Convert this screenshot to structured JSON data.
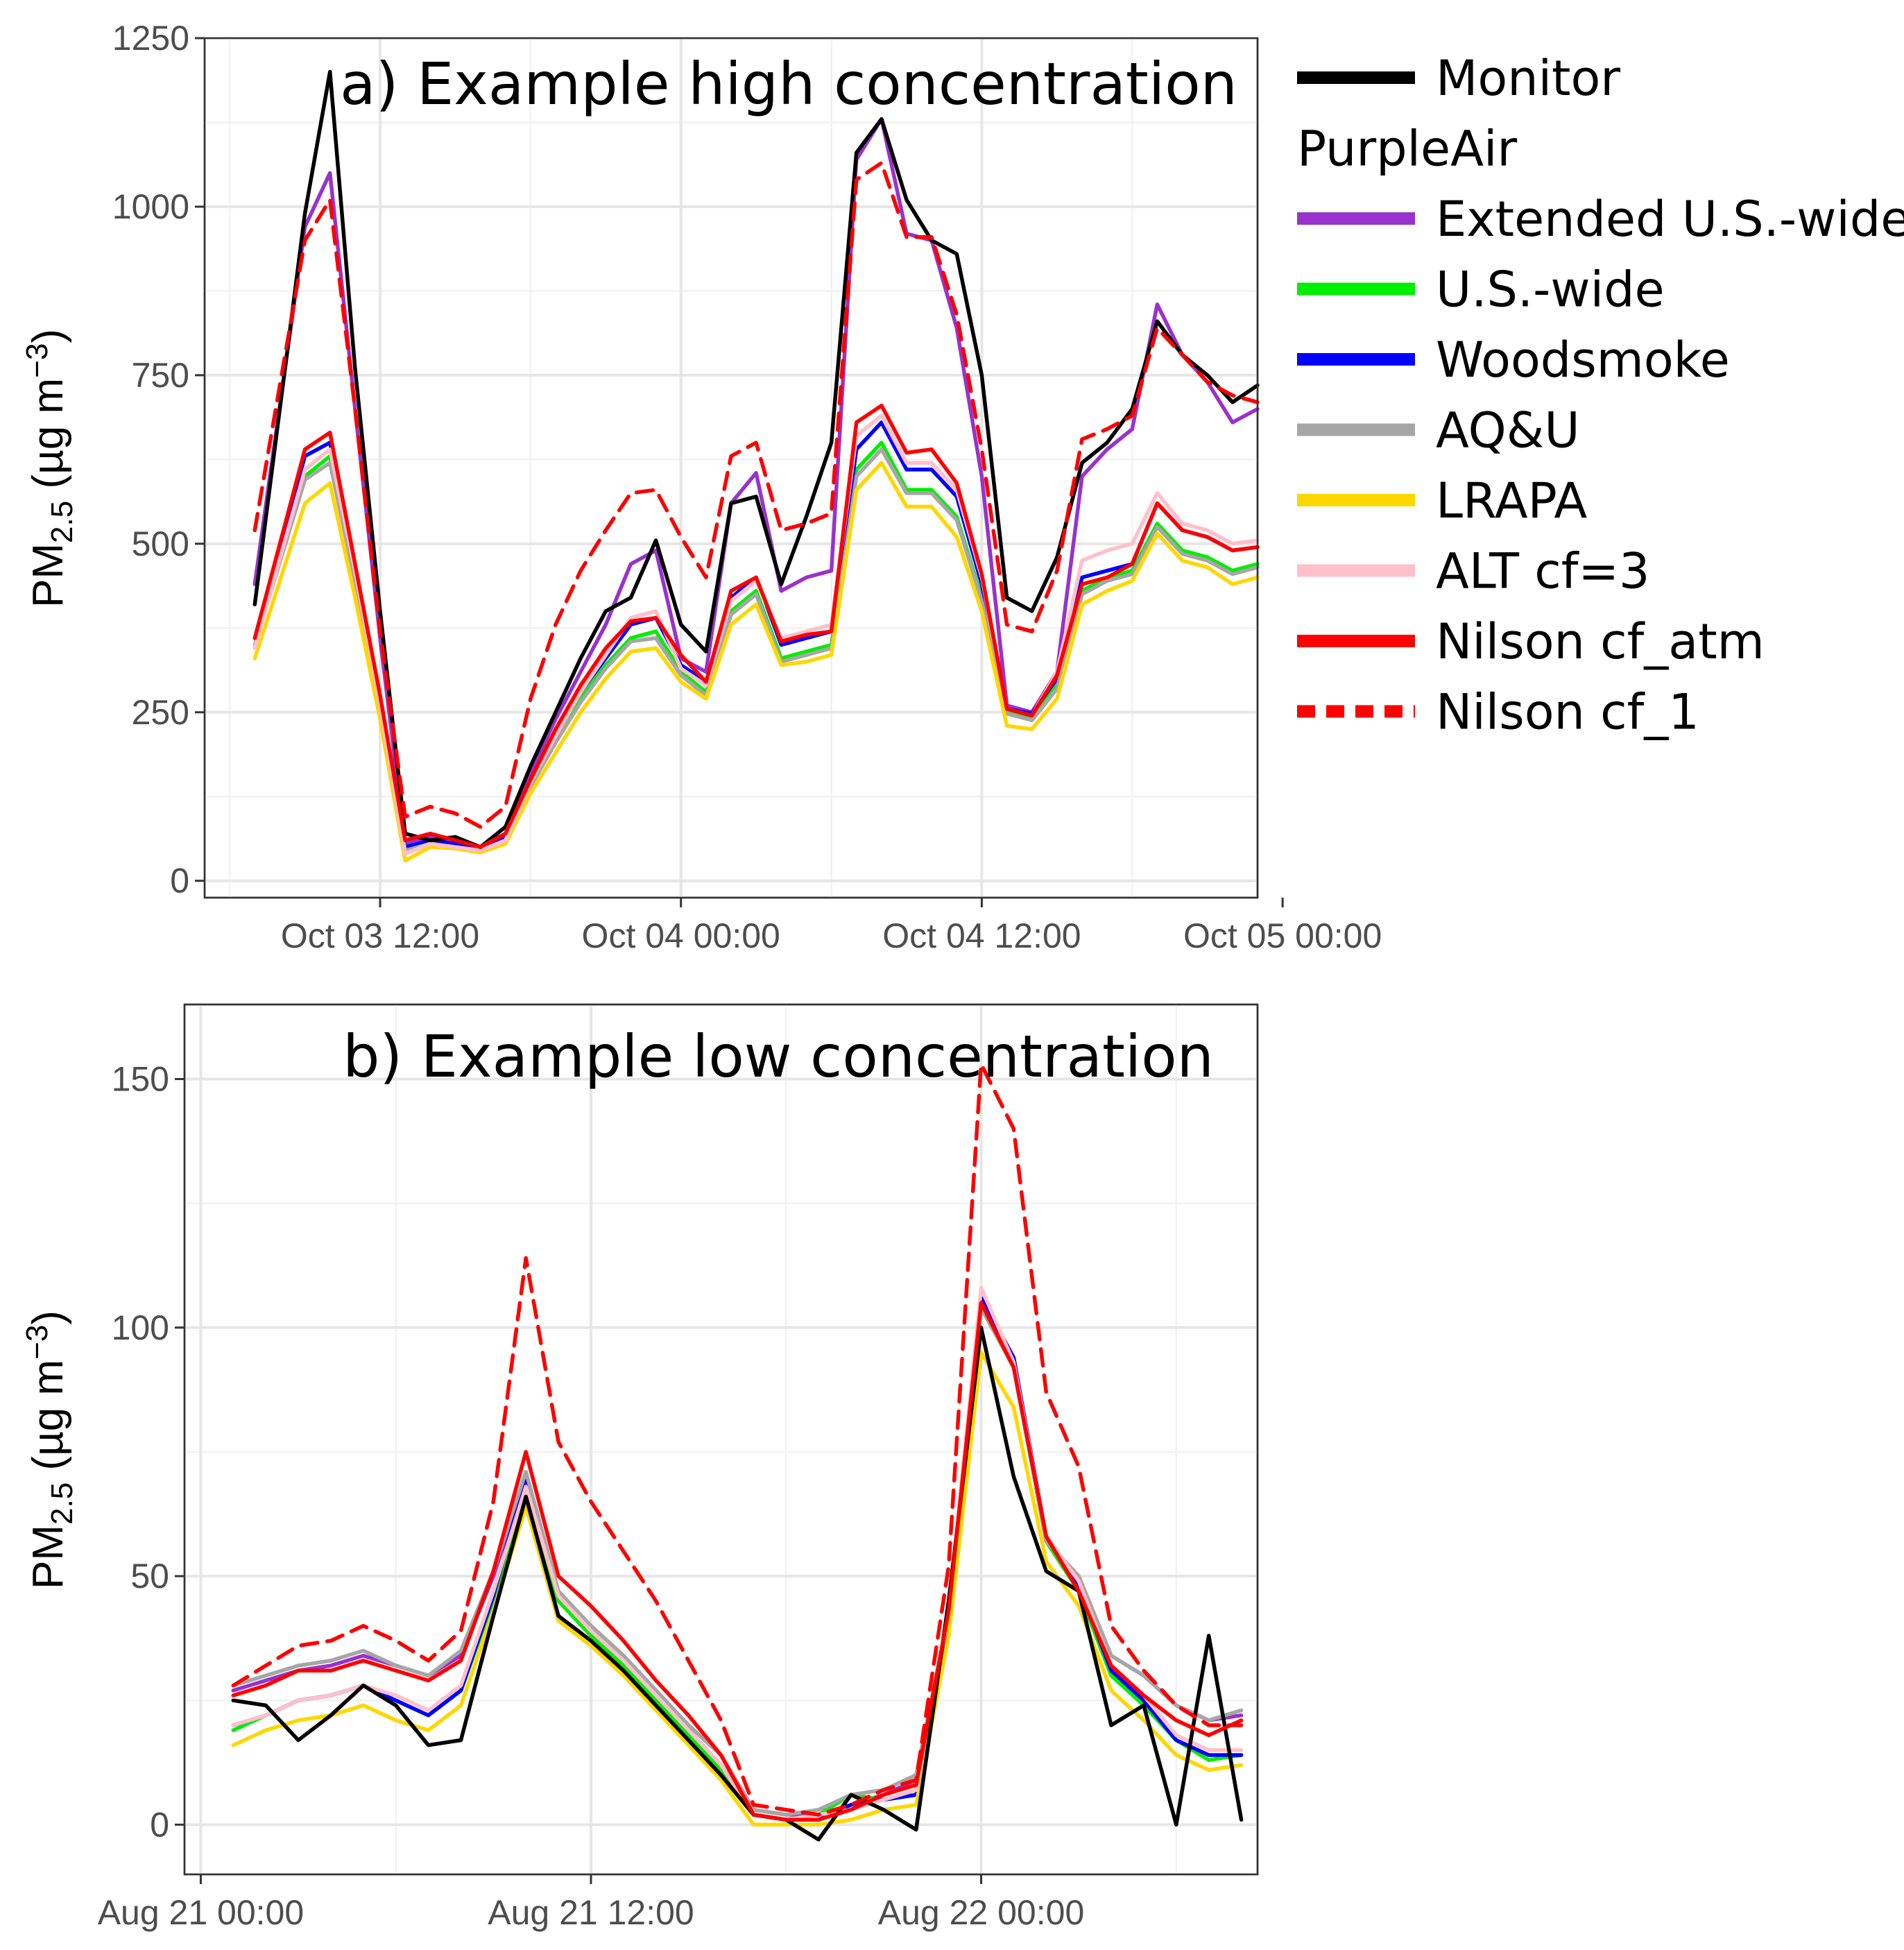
{
  "legend": {
    "items": [
      {
        "label": "Monitor",
        "color": "#000000",
        "dash": false
      },
      {
        "label": "PurpleAir",
        "header": true
      },
      {
        "label": "Extended U.S.-wide",
        "color": "#9932CC",
        "dash": false
      },
      {
        "label": "U.S.-wide",
        "color": "#00EE00",
        "dash": false
      },
      {
        "label": "Woodsmoke",
        "color": "#0000FF",
        "dash": false
      },
      {
        "label": "AQ&U",
        "color": "#A6A6A6",
        "dash": false
      },
      {
        "label": "LRAPA",
        "color": "#FFD700",
        "dash": false
      },
      {
        "label": "ALT cf=3",
        "color": "#FFC0CB",
        "dash": false
      },
      {
        "label": "Nilson cf_atm",
        "color": "#FF0000",
        "dash": false
      },
      {
        "label": "Nilson cf_1",
        "color": "#FF0000",
        "dash": true
      }
    ]
  },
  "chart_data": [
    {
      "type": "line",
      "title": "a) Example high concentration",
      "xlabel": "",
      "ylabel": "PM2.5 (µg m−3)",
      "ylabel_parts": {
        "main": "PM",
        "sub": "2.5",
        "unit": " (µg m",
        "sup": "−3",
        "close": ")"
      },
      "x_unit": "hours since Oct 03 00:00",
      "xlim": [
        5,
        47
      ],
      "ylim": [
        -25,
        1250
      ],
      "yticks": [
        0,
        250,
        500,
        750,
        1000,
        1250
      ],
      "xticks": [
        {
          "x": 12,
          "label": "Oct 03 12:00"
        },
        {
          "x": 24,
          "label": "Oct 04 00:00"
        },
        {
          "x": 36,
          "label": "Oct 04 12:00"
        },
        {
          "x": 48,
          "label": "Oct 05 00:00"
        }
      ],
      "x": [
        7,
        9,
        10,
        11,
        12,
        13,
        14,
        15,
        16,
        17,
        18,
        19,
        20,
        21,
        22,
        23,
        24,
        25,
        26,
        27,
        28,
        29,
        30,
        31,
        32,
        33,
        34,
        35,
        36,
        37,
        38,
        39,
        40,
        41,
        42,
        43,
        44,
        45,
        46,
        47
      ],
      "series": [
        {
          "name": "Monitor",
          "values": [
            410,
            990,
            1200,
            760,
            400,
            70,
            60,
            65,
            50,
            80,
            170,
            250,
            330,
            400,
            420,
            505,
            380,
            340,
            560,
            570,
            440,
            540,
            650,
            1080,
            1130,
            1010,
            950,
            930,
            750,
            420,
            400,
            480,
            620,
            650,
            700,
            830,
            780,
            750,
            710,
            735
          ]
        },
        {
          "name": "Extended U.S.-wide",
          "values": [
            440,
            970,
            1050,
            700,
            360,
            55,
            65,
            55,
            50,
            70,
            160,
            240,
            310,
            380,
            470,
            490,
            330,
            310,
            560,
            605,
            430,
            450,
            460,
            1070,
            1130,
            960,
            950,
            820,
            600,
            260,
            250,
            310,
            600,
            640,
            670,
            855,
            780,
            740,
            680,
            700
          ]
        },
        {
          "name": "U.S.-wide",
          "values": [
            350,
            600,
            630,
            450,
            260,
            45,
            55,
            50,
            45,
            60,
            140,
            210,
            270,
            320,
            360,
            370,
            310,
            280,
            400,
            430,
            330,
            340,
            350,
            610,
            650,
            580,
            580,
            540,
            420,
            250,
            240,
            290,
            430,
            450,
            460,
            530,
            490,
            480,
            460,
            470
          ]
        },
        {
          "name": "Woodsmoke",
          "values": [
            360,
            630,
            650,
            460,
            270,
            50,
            60,
            55,
            48,
            65,
            145,
            220,
            280,
            330,
            380,
            390,
            320,
            295,
            420,
            450,
            350,
            360,
            370,
            640,
            680,
            610,
            610,
            570,
            440,
            255,
            248,
            300,
            450,
            460,
            470,
            560,
            520,
            510,
            490,
            495
          ]
        },
        {
          "name": "AQ&U",
          "values": [
            350,
            595,
            620,
            445,
            255,
            45,
            55,
            50,
            45,
            60,
            140,
            205,
            265,
            315,
            355,
            360,
            305,
            275,
            395,
            425,
            325,
            335,
            345,
            600,
            640,
            575,
            575,
            535,
            415,
            248,
            238,
            285,
            425,
            445,
            455,
            525,
            485,
            475,
            455,
            465
          ]
        },
        {
          "name": "LRAPA",
          "values": [
            330,
            560,
            590,
            420,
            240,
            30,
            50,
            48,
            42,
            55,
            130,
            190,
            250,
            300,
            340,
            345,
            295,
            270,
            380,
            410,
            320,
            325,
            335,
            580,
            620,
            555,
            555,
            510,
            400,
            230,
            225,
            270,
            410,
            430,
            445,
            515,
            475,
            465,
            440,
            450
          ]
        },
        {
          "name": "ALT cf=3",
          "values": [
            345,
            610,
            640,
            460,
            260,
            40,
            55,
            50,
            45,
            60,
            145,
            215,
            280,
            335,
            390,
            400,
            315,
            290,
            415,
            445,
            360,
            370,
            380,
            660,
            690,
            620,
            620,
            580,
            450,
            255,
            245,
            310,
            475,
            490,
            500,
            575,
            530,
            520,
            500,
            505
          ]
        },
        {
          "name": "Nilson cf_atm",
          "values": [
            360,
            640,
            665,
            470,
            275,
            60,
            70,
            60,
            50,
            70,
            150,
            225,
            290,
            345,
            385,
            390,
            335,
            295,
            430,
            450,
            355,
            365,
            370,
            680,
            705,
            635,
            640,
            590,
            455,
            255,
            245,
            305,
            440,
            450,
            470,
            560,
            520,
            510,
            490,
            495
          ]
        },
        {
          "name": "Nilson cf_1",
          "values": [
            520,
            950,
            1010,
            700,
            370,
            95,
            110,
            100,
            80,
            110,
            270,
            380,
            460,
            520,
            575,
            580,
            510,
            450,
            630,
            650,
            520,
            530,
            545,
            1040,
            1065,
            955,
            955,
            840,
            640,
            380,
            370,
            460,
            655,
            670,
            690,
            820,
            780,
            740,
            720,
            710
          ]
        }
      ]
    },
    {
      "type": "line",
      "title": "b) Example low concentration",
      "xlabel": "",
      "ylabel": "PM2.5 (µg m−3)",
      "ylabel_parts": {
        "main": "PM",
        "sub": "2.5",
        "unit": " (µg m",
        "sup": "−3",
        "close": ")"
      },
      "x_unit": "hours since Aug 21 00:00",
      "xlim": [
        -0.5,
        32.5
      ],
      "ylim": [
        -10,
        165
      ],
      "yticks": [
        0,
        50,
        100,
        150
      ],
      "xticks": [
        {
          "x": 0,
          "label": "Aug 21 00:00"
        },
        {
          "x": 12,
          "label": "Aug 21 12:00"
        },
        {
          "x": 24,
          "label": "Aug 22 00:00"
        }
      ],
      "x": [
        1,
        2,
        3,
        4,
        5,
        6,
        7,
        8,
        9,
        10,
        11,
        12,
        13,
        14,
        15,
        16,
        17,
        18,
        19,
        20,
        21,
        22,
        23,
        24,
        25,
        26,
        27,
        28,
        29,
        30,
        31,
        32
      ],
      "series": [
        {
          "name": "Monitor",
          "values": [
            25,
            24,
            17,
            22,
            28,
            24,
            16,
            17,
            42,
            66,
            42,
            37,
            31,
            24,
            17,
            10,
            2,
            1,
            -3,
            6,
            3,
            -1,
            45,
            100,
            70,
            51,
            47,
            20,
            24,
            0,
            38,
            1
          ]
        },
        {
          "name": "Extended U.S.-wide",
          "values": [
            27,
            29,
            31,
            32,
            34,
            32,
            30,
            34,
            50,
            70,
            46,
            40,
            34,
            27,
            20,
            14,
            3,
            2,
            2,
            4,
            6,
            9,
            42,
            105,
            92,
            57,
            50,
            34,
            30,
            24,
            21,
            22
          ]
        },
        {
          "name": "U.S.-wide",
          "values": [
            19,
            22,
            25,
            26,
            28,
            25,
            22,
            27,
            45,
            66,
            45,
            38,
            32,
            25,
            18,
            11,
            2,
            1,
            2,
            6,
            5,
            6,
            40,
            104,
            92,
            57,
            47,
            30,
            24,
            17,
            13,
            14
          ]
        },
        {
          "name": "Woodsmoke",
          "values": [
            20,
            22,
            25,
            26,
            28,
            25,
            22,
            27,
            46,
            70,
            46,
            39,
            33,
            26,
            19,
            12,
            2,
            1,
            1,
            4,
            5,
            6,
            42,
            106,
            94,
            58,
            48,
            31,
            25,
            17,
            14,
            14
          ]
        },
        {
          "name": "AQ&U",
          "values": [
            28,
            30,
            32,
            33,
            35,
            32,
            30,
            35,
            51,
            71,
            47,
            40,
            34,
            27,
            20,
            14,
            3,
            2,
            3,
            6,
            7,
            10,
            42,
            104,
            92,
            57,
            50,
            34,
            30,
            24,
            21,
            23
          ]
        },
        {
          "name": "LRAPA",
          "values": [
            16,
            19,
            21,
            22,
            24,
            21,
            19,
            24,
            43,
            64,
            41,
            36,
            30,
            23,
            16,
            9,
            0,
            0,
            0,
            1,
            3,
            4,
            38,
            95,
            84,
            53,
            44,
            27,
            21,
            14,
            11,
            12
          ]
        },
        {
          "name": "ALT cf=3",
          "values": [
            20,
            22,
            25,
            26,
            28,
            26,
            23,
            28,
            47,
            68,
            46,
            39,
            33,
            26,
            19,
            12,
            2,
            1,
            2,
            3,
            5,
            7,
            43,
            108,
            93,
            58,
            49,
            32,
            26,
            18,
            15,
            15
          ]
        },
        {
          "name": "Nilson cf_atm",
          "values": [
            26,
            28,
            31,
            31,
            33,
            31,
            29,
            33,
            51,
            75,
            50,
            44,
            37,
            29,
            22,
            14,
            2,
            1,
            1,
            3,
            6,
            8,
            43,
            105,
            92,
            58,
            47,
            32,
            26,
            21,
            18,
            21
          ]
        },
        {
          "name": "Nilson cf_1",
          "values": [
            28,
            32,
            36,
            37,
            40,
            37,
            33,
            39,
            65,
            114,
            77,
            65,
            55,
            45,
            33,
            21,
            4,
            3,
            2,
            4,
            7,
            9,
            52,
            153,
            140,
            87,
            72,
            40,
            31,
            24,
            20,
            20
          ]
        }
      ]
    }
  ]
}
